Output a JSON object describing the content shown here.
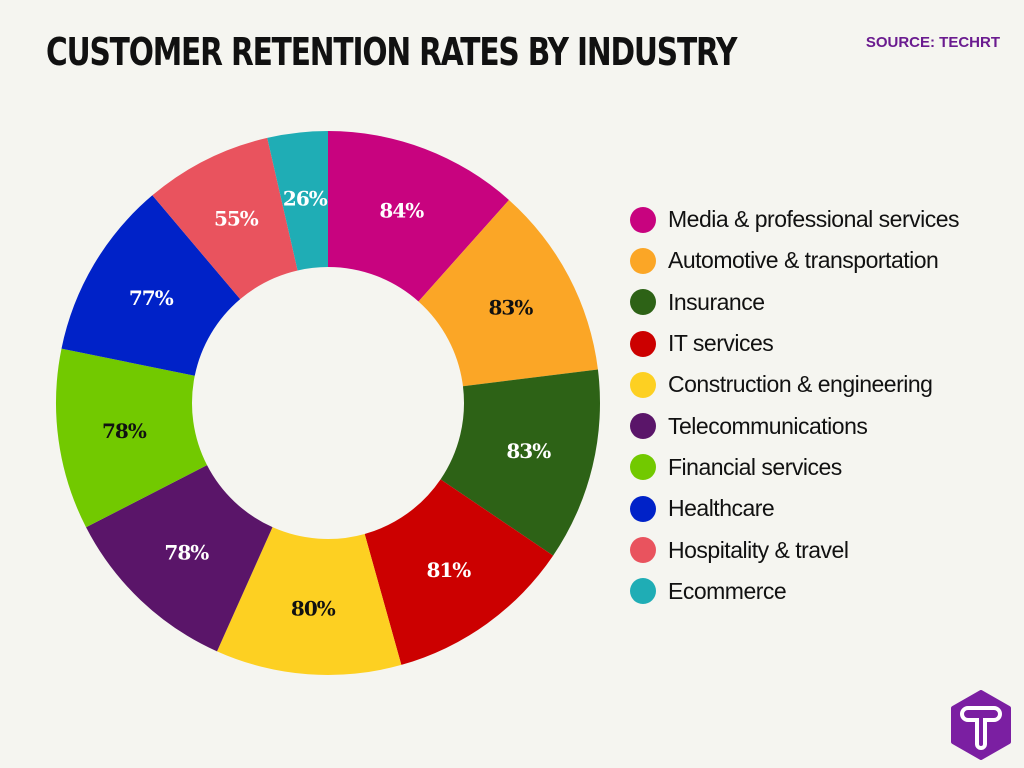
{
  "header": {
    "title": "CUSTOMER RETENTION RATES BY INDUSTRY",
    "source": "SOURCE: TECHRT"
  },
  "chart_data": {
    "type": "pie",
    "variant": "donut",
    "title": "CUSTOMER RETENTION RATES BY INDUSTRY",
    "categories": [
      "Media & professional services",
      "Automotive & transportation",
      "Insurance",
      "IT services",
      "Construction & engineering",
      "Telecommunications",
      "Financial services",
      "Healthcare",
      "Hospitality & travel",
      "Ecommerce"
    ],
    "values": [
      84,
      83,
      83,
      81,
      80,
      78,
      78,
      77,
      55,
      26
    ],
    "data_labels": [
      "84%",
      "83%",
      "83%",
      "81%",
      "80%",
      "78%",
      "78%",
      "77%",
      "55%",
      "26%"
    ],
    "colors": [
      "#c8037f",
      "#fba626",
      "#2d6216",
      "#cc0000",
      "#fdd022",
      "#5a1569",
      "#72c900",
      "#0022c8",
      "#e9535e",
      "#1fadb5"
    ],
    "label_colors": [
      "#ffffff",
      "#111111",
      "#ffffff",
      "#ffffff",
      "#111111",
      "#ffffff",
      "#111111",
      "#ffffff",
      "#ffffff",
      "#ffffff"
    ],
    "legend": "right"
  },
  "logo": {
    "text": "T",
    "color": "#7b1fa2"
  }
}
